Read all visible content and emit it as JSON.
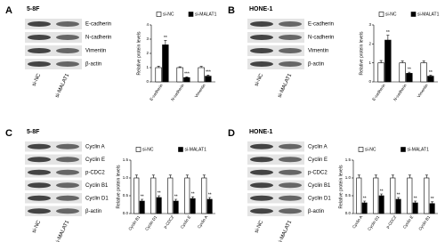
{
  "chart_data": [
    {
      "type": "bar",
      "panel": "A",
      "cell_line": "5-8F",
      "blot_labels": [
        "E-cadherin",
        "N-cadherin",
        "Vimentin",
        "β-actin"
      ],
      "lanes": [
        "si-NC",
        "si-MALAT1"
      ],
      "ylabel": "Relative protein levels",
      "categories": [
        "E-cadherin",
        "N-cadherin",
        "Vimentin"
      ],
      "series": [
        {
          "name": "si-NC",
          "color": "#ffffff",
          "values": [
            1,
            1,
            1
          ],
          "errors": [
            0.1,
            0.06,
            0.08
          ]
        },
        {
          "name": "si-MALAT1",
          "color": "#000000",
          "values": [
            2.6,
            0.3,
            0.4
          ],
          "errors": [
            0.3,
            0.05,
            0.08
          ]
        }
      ],
      "annotations": [
        "**",
        "***",
        "***"
      ],
      "ylim": [
        0,
        4
      ],
      "yticks": [
        0,
        1,
        2,
        3,
        4
      ]
    },
    {
      "type": "bar",
      "panel": "B",
      "cell_line": "HONE-1",
      "blot_labels": [
        "E-cadherin",
        "N-cadherin",
        "Vimentin",
        "β-actin"
      ],
      "lanes": [
        "si-NC",
        "si-MALAT1"
      ],
      "ylabel": "Relative protein levels",
      "categories": [
        "E-cadherin",
        "N-cadherin",
        "Vimentin"
      ],
      "series": [
        {
          "name": "si-NC",
          "color": "#ffffff",
          "values": [
            1,
            1,
            1
          ],
          "errors": [
            0.12,
            0.1,
            0.1
          ]
        },
        {
          "name": "si-MALAT1",
          "color": "#000000",
          "values": [
            2.2,
            0.45,
            0.3
          ],
          "errors": [
            0.25,
            0.06,
            0.05
          ]
        }
      ],
      "annotations": [
        "**",
        "**",
        "**"
      ],
      "ylim": [
        0,
        3
      ],
      "yticks": [
        0,
        1,
        2,
        3
      ]
    },
    {
      "type": "bar",
      "panel": "C",
      "cell_line": "5-8F",
      "blot_labels": [
        "Cyclin A",
        "Cyclin E",
        "p-CDC2",
        "Cyclin B1",
        "Cyclin D1",
        "β-actin"
      ],
      "lanes": [
        "si-NC",
        "si-MALAT1"
      ],
      "ylabel": "Relative protein levels",
      "categories": [
        "Cyclin B1",
        "Cyclin D1",
        "p-CDC2",
        "Cyclin E",
        "Cyclin A"
      ],
      "series": [
        {
          "name": "si-NC",
          "color": "#ffffff",
          "values": [
            1,
            1,
            1,
            1,
            1
          ],
          "errors": [
            0.08,
            0.08,
            0.08,
            0.08,
            0.08
          ]
        },
        {
          "name": "si-MALAT1",
          "color": "#000000",
          "values": [
            0.35,
            0.45,
            0.35,
            0.42,
            0.4
          ],
          "errors": [
            0.05,
            0.05,
            0.05,
            0.05,
            0.05
          ]
        }
      ],
      "annotations": [
        "**",
        "**",
        "**",
        "**",
        "**"
      ],
      "ylim": [
        0,
        1.5
      ],
      "yticks": [
        {
          "value": 0,
          "label": "0.0"
        },
        {
          "value": 0.5,
          "label": "0.5"
        },
        {
          "value": 1,
          "label": "1.0"
        },
        {
          "value": 1.5,
          "label": "1.5"
        }
      ]
    },
    {
      "type": "bar",
      "panel": "D",
      "cell_line": "HONE-1",
      "blot_labels": [
        "Cyclin A",
        "Cyclin E",
        "p-CDC2",
        "Cyclin B1",
        "Cyclin D1",
        "β-actin"
      ],
      "lanes": [
        "si-NC",
        "si-MALAT1"
      ],
      "ylabel": "Relative protein levels",
      "categories": [
        "Cyclin A",
        "Cyclin D1",
        "p-CDC2",
        "Cyclin E",
        "Cyclin B1"
      ],
      "series": [
        {
          "name": "si-NC",
          "color": "#ffffff",
          "values": [
            1,
            1,
            1,
            1,
            1
          ],
          "errors": [
            0.08,
            0.08,
            0.08,
            0.08,
            0.08
          ]
        },
        {
          "name": "si-MALAT1",
          "color": "#000000",
          "values": [
            0.3,
            0.5,
            0.4,
            0.3,
            0.28
          ],
          "errors": [
            0.05,
            0.05,
            0.05,
            0.05,
            0.05
          ]
        }
      ],
      "annotations": [
        "**",
        "**",
        "**",
        "**",
        "**"
      ],
      "ylim": [
        0,
        1.5
      ],
      "yticks": [
        {
          "value": 0,
          "label": "0.0"
        },
        {
          "value": 0.5,
          "label": "0.5"
        },
        {
          "value": 1,
          "label": "1.0"
        },
        {
          "value": 1.5,
          "label": "1.5"
        }
      ]
    }
  ]
}
